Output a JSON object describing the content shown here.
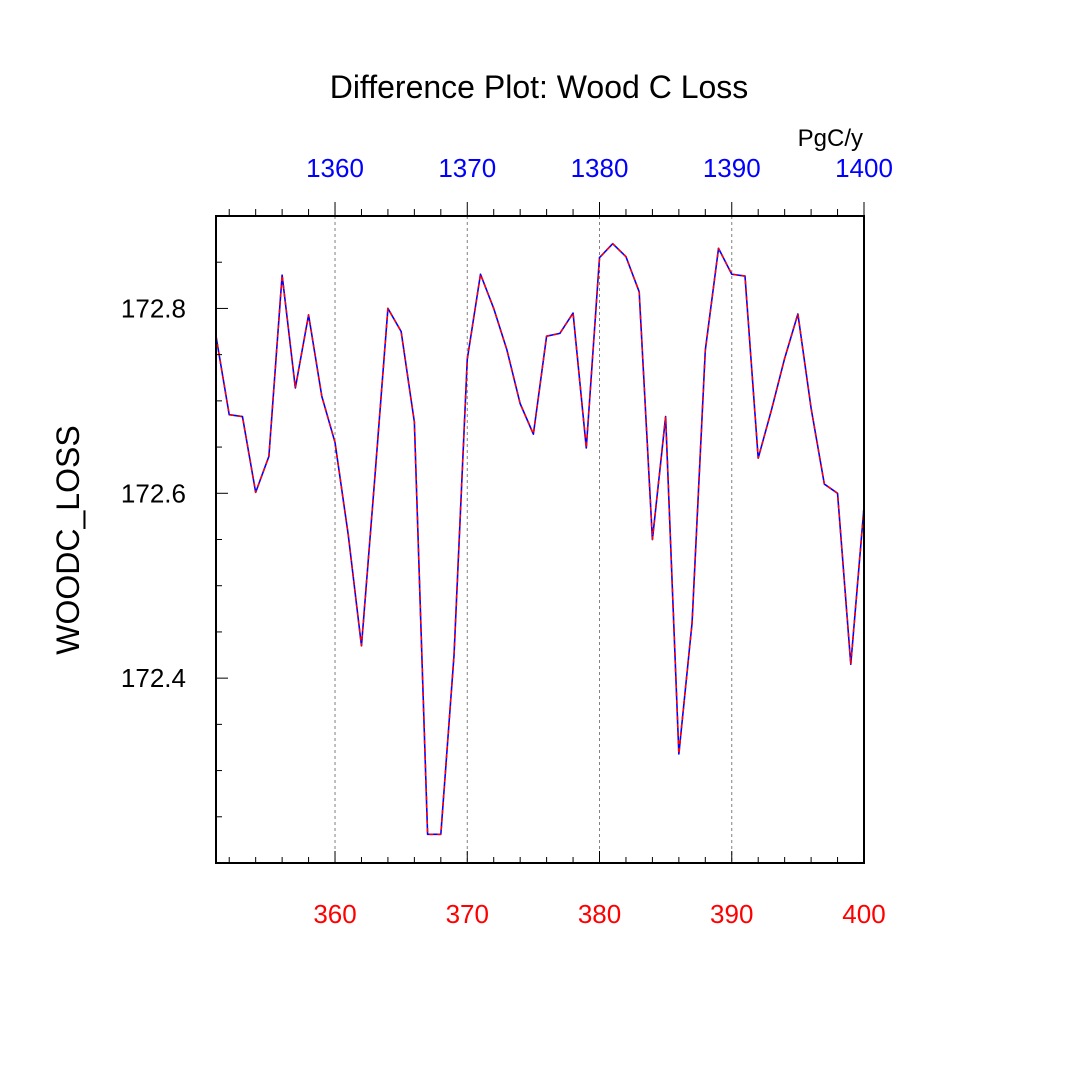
{
  "chart_data": {
    "type": "line",
    "title": "Difference Plot: Wood C Loss",
    "units": "PgC/y",
    "ylabel": "WOODC_LOSS",
    "xlabel": "",
    "xlim": [
      351,
      400
    ],
    "ylim": [
      172.2,
      172.9
    ],
    "grid": "vertical dashed lines at major x ticks",
    "bottom_axis": {
      "color": "#ff0000",
      "major_ticks": [
        360,
        370,
        380,
        390,
        400
      ],
      "tick_labels": [
        "360",
        "370",
        "380",
        "390",
        "400"
      ]
    },
    "top_axis": {
      "color": "#0000ff",
      "major_ticks": [
        360,
        370,
        380,
        390,
        400
      ],
      "tick_labels": [
        "1360",
        "1370",
        "1380",
        "1390",
        "1400"
      ]
    },
    "left_axis": {
      "major_ticks": [
        172.4,
        172.6,
        172.8
      ],
      "tick_labels": [
        "172.4",
        "172.6",
        "172.8"
      ],
      "minor_ticks": [
        172.25,
        172.3,
        172.35,
        172.45,
        172.5,
        172.55,
        172.65,
        172.7,
        172.75,
        172.85,
        172.9
      ]
    },
    "x": [
      351,
      352,
      353,
      354,
      355,
      356,
      357,
      358,
      359,
      360,
      361,
      362,
      363,
      364,
      365,
      366,
      367,
      368,
      369,
      370,
      371,
      372,
      373,
      374,
      375,
      376,
      377,
      378,
      379,
      380,
      381,
      382,
      383,
      384,
      385,
      386,
      387,
      388,
      389,
      390,
      391,
      392,
      393,
      394,
      395,
      396,
      397,
      398,
      399,
      400
    ],
    "series": [
      {
        "color": "#0000ff",
        "style": "solid",
        "values": [
          172.77,
          172.685,
          172.683,
          172.601,
          172.64,
          172.836,
          172.714,
          172.793,
          172.705,
          172.655,
          172.555,
          172.435,
          172.615,
          172.8,
          172.775,
          172.677,
          172.231,
          172.231,
          172.425,
          172.745,
          172.837,
          172.8,
          172.755,
          172.697,
          172.664,
          172.77,
          172.773,
          172.795,
          172.649,
          172.855,
          172.87,
          172.856,
          172.818,
          172.55,
          172.683,
          172.318,
          172.46,
          172.755,
          172.865,
          172.837,
          172.835,
          172.638,
          172.69,
          172.746,
          172.794,
          172.692,
          172.61,
          172.6,
          172.415,
          172.585
        ]
      },
      {
        "color": "#ff0000",
        "style": "dashed",
        "values": [
          172.77,
          172.685,
          172.683,
          172.601,
          172.64,
          172.836,
          172.714,
          172.793,
          172.705,
          172.655,
          172.555,
          172.435,
          172.615,
          172.8,
          172.775,
          172.677,
          172.231,
          172.231,
          172.425,
          172.745,
          172.837,
          172.8,
          172.755,
          172.697,
          172.664,
          172.77,
          172.773,
          172.795,
          172.649,
          172.855,
          172.87,
          172.856,
          172.818,
          172.55,
          172.683,
          172.318,
          172.46,
          172.755,
          172.865,
          172.837,
          172.835,
          172.638,
          172.69,
          172.746,
          172.794,
          172.692,
          172.61,
          172.6,
          172.415,
          172.585
        ]
      }
    ]
  }
}
